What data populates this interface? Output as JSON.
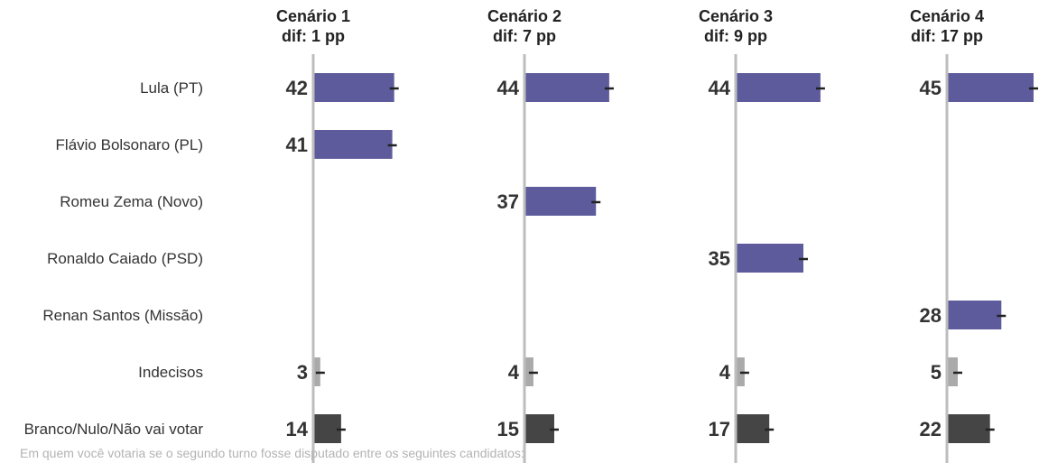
{
  "chart_data": {
    "type": "bar",
    "orientation": "horizontal",
    "categories": [
      "Lula (PT)",
      "Flávio Bolsonaro (PL)",
      "Romeu Zema (Novo)",
      "Ronaldo Caiado (PSD)",
      "Renan Santos (Missão)",
      "Indecisos",
      "Branco/Nulo/Não vai votar"
    ],
    "panels": [
      {
        "title": "Cenário 1",
        "subtitle": "dif: 1 pp",
        "values": [
          42,
          41,
          null,
          null,
          null,
          3,
          14
        ]
      },
      {
        "title": "Cenário 2",
        "subtitle": "dif: 7 pp",
        "values": [
          44,
          null,
          37,
          null,
          null,
          4,
          15
        ]
      },
      {
        "title": "Cenário 3",
        "subtitle": "dif: 9 pp",
        "values": [
          44,
          null,
          null,
          35,
          null,
          4,
          17
        ]
      },
      {
        "title": "Cenário 4",
        "subtitle": "dif: 17 pp",
        "values": [
          45,
          null,
          null,
          null,
          28,
          5,
          22
        ]
      }
    ],
    "error_marks": true,
    "colors": {
      "candidate": "#5e5b9c",
      "Indecisos": "#aaaaaa",
      "Branco/Nulo/Não vai votar": "#454545",
      "axis": "#bdbdbd",
      "error": "#222222"
    },
    "xlim": [
      0,
      50
    ],
    "grid": false,
    "footnote": "Em quem você votaria se o segundo turno fosse disputado entre os seguintes candidatos:"
  }
}
